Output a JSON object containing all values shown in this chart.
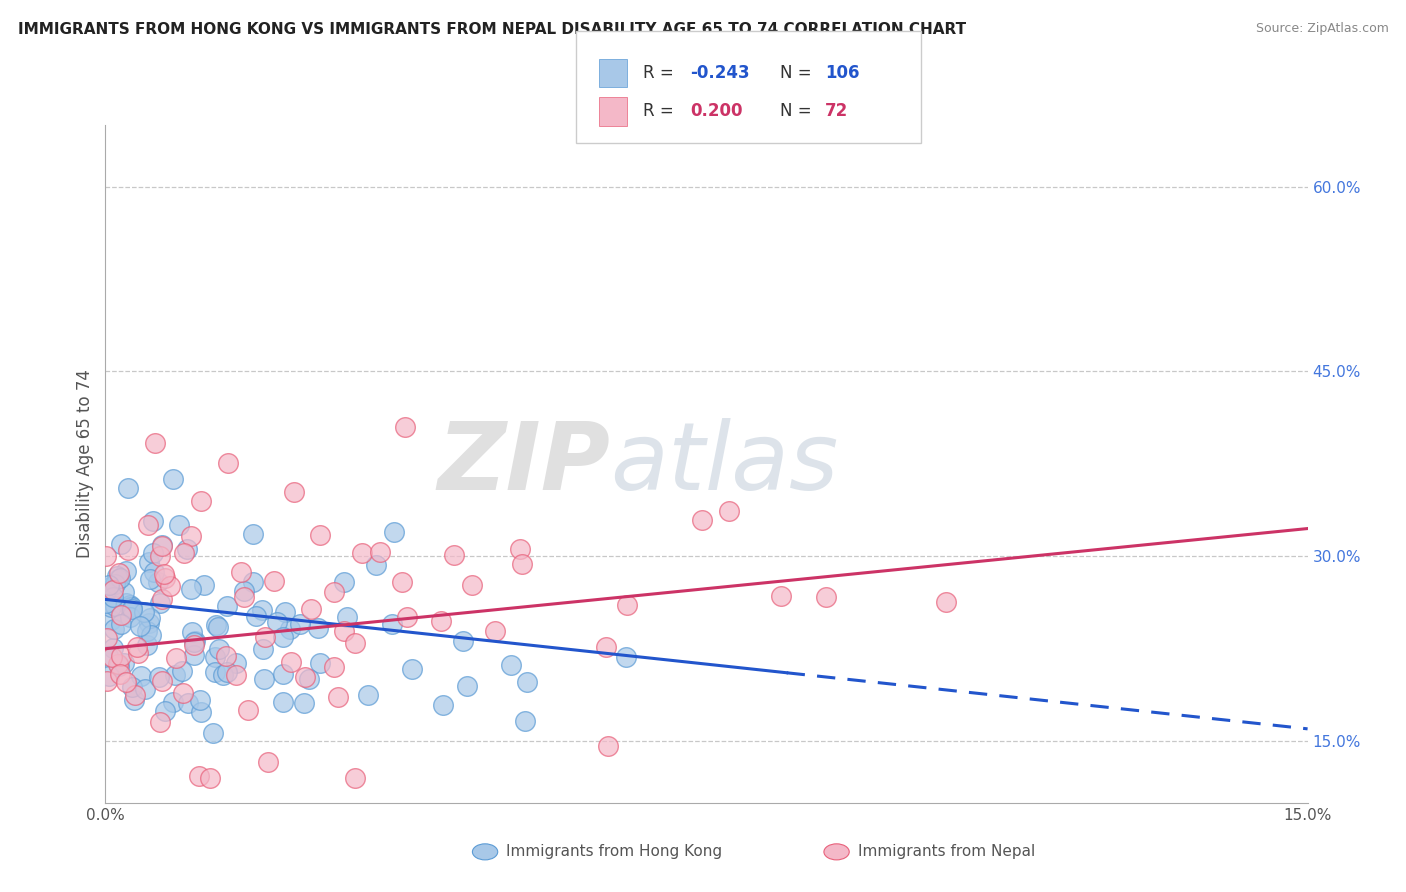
{
  "title": "IMMIGRANTS FROM HONG KONG VS IMMIGRANTS FROM NEPAL DISABILITY AGE 65 TO 74 CORRELATION CHART",
  "source": "Source: ZipAtlas.com",
  "ylabel": "Disability Age 65 to 74",
  "xlim": [
    0.0,
    15.0
  ],
  "ylim": [
    10.0,
    65.0
  ],
  "yticks": [
    15.0,
    30.0,
    45.0,
    60.0
  ],
  "ytick_labels": [
    "15.0%",
    "30.0%",
    "45.0%",
    "60.0%"
  ],
  "xtick_labels": [
    "0.0%",
    "15.0%"
  ],
  "hk_R": -0.243,
  "hk_N": 106,
  "nepal_R": 0.2,
  "nepal_N": 72,
  "hk_color": "#a8c8e8",
  "hk_edge_color": "#5b9bd5",
  "nepal_color": "#f4b8c8",
  "nepal_edge_color": "#e8607a",
  "hk_line_color": "#2255cc",
  "nepal_line_color": "#cc3366",
  "watermark_zip": "ZIP",
  "watermark_atlas": "atlas",
  "background_color": "#ffffff",
  "grid_color": "#c8c8c8",
  "title_color": "#222222",
  "legend_r_color": "#2255cc",
  "legend_n_color": "#2255cc",
  "legend_r2_color": "#cc3366",
  "legend_n2_color": "#cc3366"
}
